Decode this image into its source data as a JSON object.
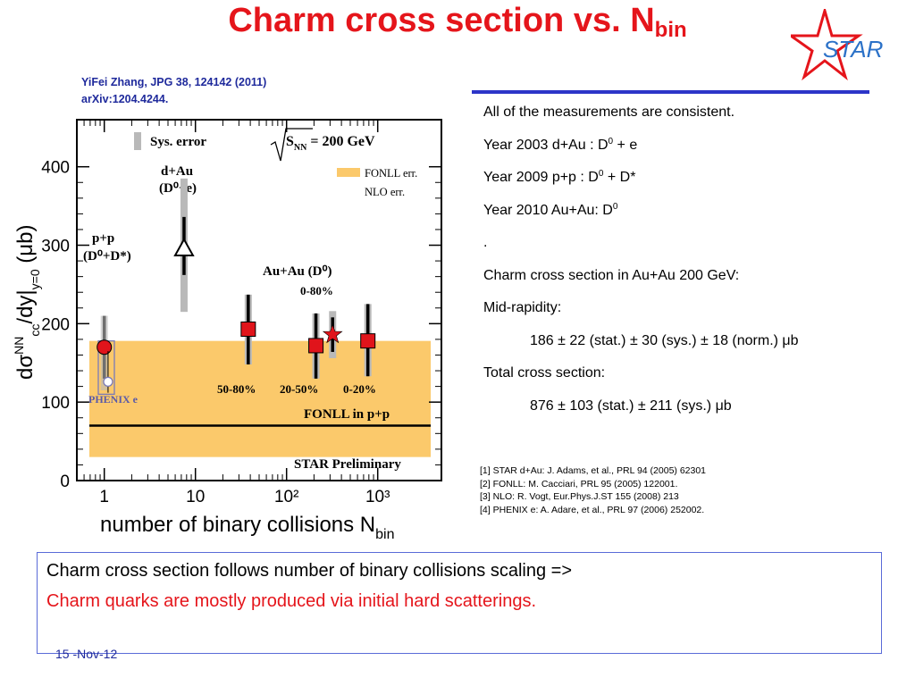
{
  "slide": {
    "title_main": "Charm cross section vs. N",
    "title_sub": "bin",
    "ref_line1": "YiFei Zhang, JPG 38, 124142 (2011)",
    "ref_line2": "arXiv:1204.4244.",
    "logo_text": "STAR",
    "right_lines": [
      "All of the measurements are consistent.",
      "Year 2003 d+Au  : D",
      "Year 2009 p+p     : D",
      "Year 2010 Au+Au: D",
      ".",
      "Charm cross section in Au+Au 200 GeV:",
      "Mid-rapidity:",
      "186 ± 22 (stat.) ± 30 (sys.) ± 18 (norm.) μb",
      "Total cross section:",
      "876 ± 103 (stat.) ± 211 (sys.) μb"
    ],
    "line1_sup": "0",
    "line1_tail": " + e",
    "line2_sup": "0",
    "line2_tail": " + D*",
    "line3_sup": "0",
    "references": [
      "[1] STAR d+Au: J. Adams, et al., PRL 94 (2005) 62301",
      "[2] FONLL: M. Cacciari, PRL 95 (2005) 122001.",
      "[3] NLO:  R. Vogt, Eur.Phys.J.ST 155 (2008) 213",
      "[4] PHENIX e: A. Adare, et al., PRL 97 (2006) 252002."
    ],
    "conclusion_line1": "Charm cross section follows number of binary collisions scaling =>",
    "conclusion_line2": "Charm quarks are mostly produced via initial hard scatterings.",
    "date": "15 -Nov-12",
    "colors": {
      "title": "#e5151b",
      "accent_blue": "#2c35c8",
      "fonll_band": "#fbc96b",
      "data_red": "#e0141b",
      "sys_gray": "#b9b9b9"
    }
  },
  "chart_data": {
    "type": "scatter",
    "xscale": "log",
    "xlim": [
      0.5,
      5000
    ],
    "ylim": [
      0,
      460
    ],
    "xticks": [
      "1",
      "10",
      "10²",
      "10³"
    ],
    "yticks": [
      "0",
      "100",
      "200",
      "300",
      "400"
    ],
    "xlabel": "number of binary collisions N",
    "xlabel_sub": "bin",
    "ylabel": "dσ",
    "ylabel_sup": "NN",
    "ylabel_sub": "cc",
    "ylabel_mid": "/dy|",
    "ylabel_sub2": "y=0",
    "ylabel_tail": "(μb)",
    "legend": {
      "sys": "Sys. error",
      "fonll": "FONLL err.",
      "nlo": "NLO err.",
      "energy": "√S",
      "energy_sub": "NN",
      "energy_tail": "= 200 GeV"
    },
    "annotations": {
      "dau": [
        "d+Au",
        "(D⁰+e)"
      ],
      "pp": [
        "p+p",
        "(D⁰+D*)"
      ],
      "auau": "Au+Au (D⁰)",
      "auau_central_star": "0-80%",
      "phenix": "PHENIX e",
      "fonll_line": "FONLL in p+p",
      "preliminary": "STAR Preliminary",
      "cent_labels": [
        "50-80%",
        "20-50%",
        "0-20%"
      ]
    },
    "fonll_band": [
      30,
      178
    ],
    "fonll_central": 70,
    "series": [
      {
        "name": "p+p",
        "marker": "circle",
        "points": [
          {
            "x": 1,
            "y": 170,
            "stat": [
              130,
              210
            ],
            "sys": [
              115,
              210
            ]
          }
        ]
      },
      {
        "name": "d+Au",
        "marker": "triangle",
        "points": [
          {
            "x": 7.5,
            "y": 296,
            "stat": [
              262,
              336
            ],
            "sys": [
              215,
              385
            ]
          }
        ]
      },
      {
        "name": "Au+Au",
        "marker": "square",
        "points": [
          {
            "x": 38,
            "y": 193,
            "stat": [
              148,
              237
            ],
            "sys": [
              148,
              237
            ]
          },
          {
            "x": 210,
            "y": 172,
            "stat": [
              130,
              213
            ],
            "sys": [
              130,
              213
            ]
          },
          {
            "x": 780,
            "y": 178,
            "stat": [
              133,
              225
            ],
            "sys": [
              133,
              225
            ]
          }
        ]
      },
      {
        "name": "Au+Au 0-80%",
        "marker": "star",
        "points": [
          {
            "x": 320,
            "y": 186,
            "stat": [
              164,
              208
            ],
            "sys": [
              156,
              216
            ]
          }
        ]
      },
      {
        "name": "PHENIX e",
        "marker": "open-circle",
        "points": [
          {
            "x": 1.1,
            "y": 126,
            "stat": [
              112,
              165
            ]
          }
        ]
      }
    ]
  }
}
